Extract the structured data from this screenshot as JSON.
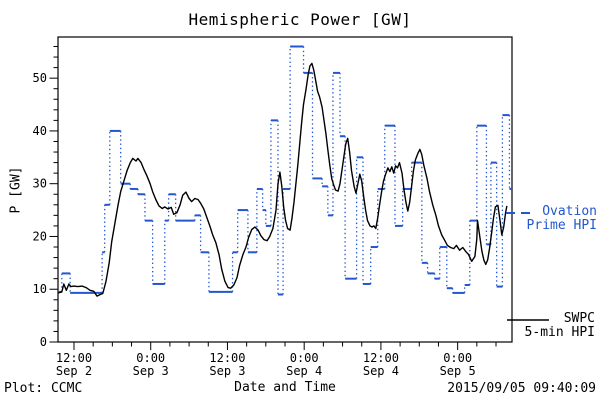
{
  "title": "Hemispheric Power [GW]",
  "axes": {
    "ylabel": "P [GW]",
    "xlabel": "Date and Time",
    "yticks": [
      0,
      10,
      20,
      30,
      40,
      50
    ],
    "xticks": [
      {
        "t": 12,
        "time": "12:00",
        "date": "Sep 2"
      },
      {
        "t": 24,
        "time": "0:00",
        "date": "Sep 3"
      },
      {
        "t": 36,
        "time": "12:00",
        "date": "Sep 3"
      },
      {
        "t": 48,
        "time": "0:00",
        "date": "Sep 4"
      },
      {
        "t": 60,
        "time": "12:00",
        "date": "Sep 4"
      },
      {
        "t": 72,
        "time": "0:00",
        "date": "Sep 5"
      }
    ]
  },
  "footer": {
    "left": "Plot: CCMC",
    "right": "2015/09/05 09:40:09"
  },
  "legend": {
    "ovation": {
      "line1": "Ovation",
      "line2": "Prime HPI",
      "color": "#2357cf"
    },
    "swpc": {
      "line1": "SWPC",
      "line2": "5-min HPI",
      "color": "#000000"
    }
  },
  "colors": {
    "ovation_blue": "#2357cf",
    "swpc_black": "#000000",
    "frame": "#000000",
    "background": "#ffffff"
  },
  "chart_data": {
    "type": "line",
    "title": "Hemispheric Power [GW]",
    "xlabel": "Date and Time",
    "ylabel": "P [GW]",
    "x_unit": "hours since 2015-09-02 00:00 UT",
    "xlim": [
      9.5,
      80.5
    ],
    "ylim": [
      0,
      57.8
    ],
    "grid": false,
    "yticks_major": [
      0,
      10,
      20,
      30,
      40,
      50
    ],
    "ytick_minor_step": 2,
    "xtick_major_step_hours": 12,
    "xtick_minor_step_hours": 3,
    "legend_position": "right-outside",
    "series": [
      {
        "name": "SWPC 5-min HPI",
        "style": "solid",
        "color": "#000000",
        "t": [
          9.5,
          10.1,
          10.4,
          10.8,
          11.2,
          11.5,
          12.0,
          12.6,
          13.3,
          13.9,
          14.5,
          15.1,
          15.6,
          16.1,
          16.5,
          17.0,
          17.5,
          17.9,
          18.4,
          18.9,
          19.3,
          19.8,
          20.3,
          20.8,
          21.2,
          21.7,
          22.0,
          22.5,
          22.9,
          23.4,
          23.9,
          24.3,
          24.8,
          25.3,
          25.8,
          26.2,
          26.7,
          27.2,
          27.6,
          28.1,
          28.6,
          29.0,
          29.5,
          30.0,
          30.4,
          30.9,
          31.4,
          31.8,
          32.3,
          32.8,
          33.3,
          33.7,
          34.2,
          34.7,
          35.1,
          35.6,
          36.1,
          36.5,
          37.0,
          37.5,
          37.9,
          38.4,
          38.9,
          39.3,
          39.8,
          40.3,
          40.8,
          41.2,
          41.7,
          42.2,
          42.6,
          43.1,
          43.6,
          43.9,
          44.2,
          44.5,
          44.8,
          45.1,
          45.4,
          45.8,
          46.1,
          46.4,
          46.7,
          47.0,
          47.3,
          47.6,
          47.9,
          48.3,
          48.6,
          48.9,
          49.2,
          49.5,
          49.8,
          50.1,
          50.4,
          50.8,
          51.1,
          51.4,
          51.7,
          52.0,
          52.3,
          52.6,
          52.9,
          53.3,
          53.6,
          53.9,
          54.2,
          54.5,
          54.8,
          55.1,
          55.4,
          55.8,
          56.1,
          56.4,
          56.7,
          57.0,
          57.3,
          57.6,
          57.9,
          58.3,
          58.6,
          58.9,
          59.2,
          59.5,
          59.8,
          60.1,
          60.4,
          60.8,
          61.1,
          61.4,
          61.7,
          62.0,
          62.3,
          62.6,
          62.9,
          63.3,
          63.6,
          63.9,
          64.2,
          64.5,
          64.8,
          65.1,
          65.4,
          65.8,
          66.1,
          66.4,
          66.7,
          67.2,
          67.6,
          68.1,
          68.6,
          69.0,
          69.5,
          70.0,
          70.4,
          70.9,
          71.4,
          71.8,
          72.3,
          72.8,
          73.3,
          73.7,
          74.2,
          74.7,
          75.0,
          75.1,
          75.4,
          75.8,
          76.1,
          76.4,
          76.7,
          77.0,
          77.3,
          77.6,
          77.9,
          78.3,
          78.6,
          78.9,
          79.2,
          79.5,
          79.7
        ],
        "v": [
          9.3,
          9.5,
          11.0,
          9.8,
          11.0,
          10.5,
          10.6,
          10.5,
          10.6,
          10.3,
          9.8,
          9.6,
          8.7,
          9.0,
          9.2,
          11.5,
          15.0,
          19.0,
          22.5,
          26.0,
          28.5,
          30.5,
          32.5,
          34.0,
          34.8,
          34.3,
          34.8,
          34.0,
          32.8,
          31.5,
          30.0,
          28.5,
          27.0,
          25.8,
          25.3,
          25.6,
          25.2,
          25.5,
          24.2,
          24.5,
          26.0,
          27.8,
          28.4,
          27.2,
          26.6,
          27.2,
          27.0,
          26.3,
          25.2,
          23.5,
          21.8,
          20.3,
          18.8,
          16.5,
          13.8,
          11.5,
          10.3,
          10.2,
          10.8,
          12.2,
          14.5,
          16.5,
          18.0,
          19.8,
          21.3,
          21.8,
          21.2,
          20.2,
          19.4,
          19.2,
          20.0,
          21.5,
          25.0,
          30.0,
          32.2,
          29.5,
          25.5,
          23.0,
          21.5,
          21.2,
          23.5,
          26.5,
          30.0,
          33.5,
          37.5,
          41.5,
          45.0,
          48.0,
          50.5,
          52.3,
          52.8,
          51.5,
          49.5,
          47.5,
          46.5,
          44.5,
          42.0,
          39.5,
          36.5,
          33.5,
          31.0,
          29.8,
          28.8,
          28.6,
          30.0,
          32.5,
          35.0,
          37.5,
          38.6,
          36.0,
          32.5,
          29.5,
          28.2,
          30.0,
          31.8,
          30.5,
          27.5,
          25.0,
          23.0,
          22.0,
          21.8,
          22.0,
          21.5,
          23.5,
          26.0,
          28.5,
          30.5,
          32.0,
          33.0,
          32.3,
          33.2,
          32.0,
          33.4,
          33.0,
          34.0,
          32.0,
          29.0,
          26.5,
          24.8,
          26.5,
          29.5,
          32.5,
          34.5,
          35.8,
          36.5,
          35.5,
          33.5,
          31.0,
          28.5,
          26.0,
          24.0,
          22.0,
          20.3,
          19.2,
          18.3,
          17.9,
          17.7,
          18.3,
          17.4,
          17.9,
          17.1,
          16.6,
          15.3,
          16.2,
          19.5,
          23.0,
          20.5,
          17.2,
          15.5,
          14.7,
          15.6,
          17.8,
          20.5,
          23.5,
          25.6,
          25.9,
          23.2,
          20.3,
          21.8,
          24.5,
          25.8
        ]
      },
      {
        "name": "Ovation Prime HPI",
        "style": "dotted-step",
        "color": "#2357cf",
        "step_t": [
          9.5,
          10.1,
          11.4,
          16.4,
          16.8,
          17.6,
          19.3,
          20.8,
          22.0,
          23.1,
          24.3,
          26.2,
          26.8,
          27.9,
          30.9,
          31.8,
          33.1,
          36.8,
          37.6,
          39.2,
          40.6,
          41.5,
          42.0,
          42.8,
          43.9,
          44.7,
          45.8,
          47.9,
          49.3,
          50.8,
          51.7,
          52.5,
          53.6,
          54.4,
          56.2,
          57.2,
          58.4,
          59.5,
          60.6,
          62.2,
          63.4,
          64.8,
          66.4,
          67.3,
          68.4,
          69.2,
          70.3,
          71.2,
          73.1,
          73.9,
          75.0,
          76.5,
          77.2,
          78.1,
          79.0,
          80.1
        ],
        "step_v": [
          9.5,
          13,
          9.3,
          17,
          26,
          40,
          30,
          29,
          28,
          23,
          11,
          23,
          28,
          23,
          24,
          17,
          9.5,
          17,
          25,
          17,
          29,
          25,
          22,
          42,
          9,
          29,
          56,
          51,
          31,
          29.5,
          24,
          51,
          39,
          12,
          35,
          11,
          18,
          29,
          41,
          22,
          29,
          34,
          15,
          13,
          12,
          18,
          10.2,
          9.3,
          10.8,
          23,
          41,
          18.5,
          34,
          10.5,
          43,
          29
        ]
      }
    ]
  }
}
